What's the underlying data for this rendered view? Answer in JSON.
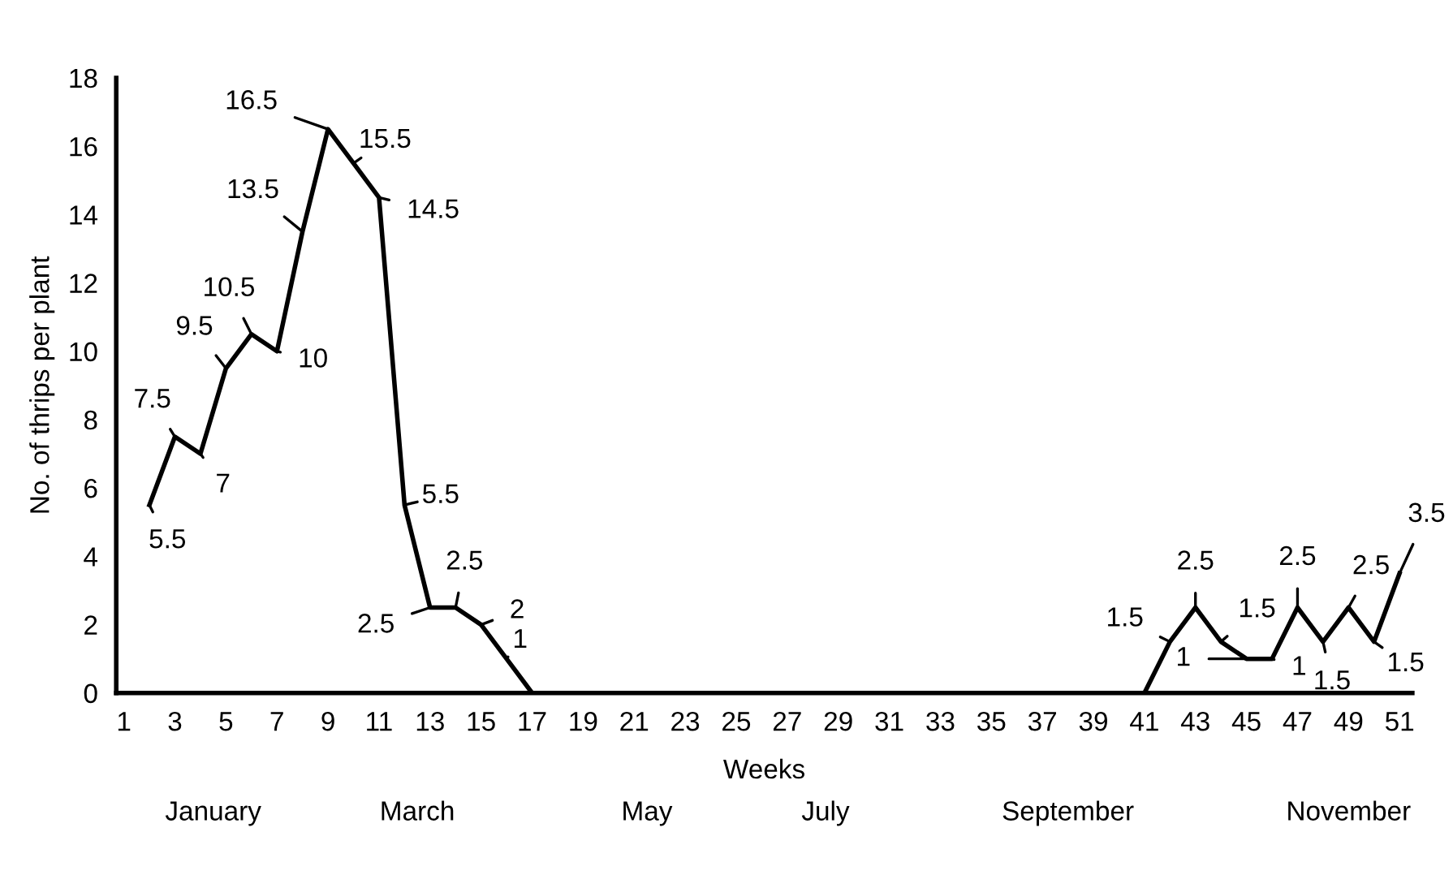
{
  "chart_data": {
    "type": "line",
    "xlabel": "Weeks",
    "ylabel": "No. of thrips per plant",
    "x": [
      2,
      3,
      4,
      5,
      6,
      7,
      8,
      9,
      10,
      11,
      12,
      13,
      14,
      15,
      16,
      17,
      41,
      42,
      43,
      44,
      45,
      46,
      47,
      48,
      49,
      50,
      51
    ],
    "series": [
      {
        "color": "#000000",
        "values": [
          5.5,
          7.5,
          7,
          9.5,
          10.5,
          10,
          13.5,
          16.5,
          15.5,
          14.5,
          5.5,
          2.5,
          2.5,
          2,
          1,
          0,
          0,
          1.5,
          2.5,
          1.5,
          1,
          1,
          2.5,
          1.5,
          2.5,
          1.5,
          3.5
        ],
        "value_labels": [
          "5.5",
          "7.5",
          "7",
          "9.5",
          "10.5",
          "10",
          "13.5",
          "16.5",
          "15.5",
          "14.5",
          "5.5",
          "2.5",
          "2.5",
          "2",
          "1",
          null,
          null,
          "1.5",
          "2.5",
          "1.5",
          "1",
          "1",
          "2.5",
          "1.5",
          "2.5",
          "1.5",
          "3.5"
        ]
      }
    ],
    "xlim": [
      0.7,
      51.5
    ],
    "ylim": [
      0,
      18
    ],
    "xticks": [
      1,
      3,
      5,
      7,
      9,
      11,
      13,
      15,
      17,
      19,
      21,
      23,
      25,
      27,
      29,
      31,
      33,
      35,
      37,
      39,
      41,
      43,
      45,
      47,
      49,
      51
    ],
    "yticks": [
      0,
      2,
      4,
      6,
      8,
      10,
      12,
      14,
      16,
      18
    ],
    "annotations": [
      "January",
      "March",
      "May",
      "July",
      "September",
      "November"
    ],
    "grid": false,
    "legend": false,
    "marker": "none",
    "line_style": "solid"
  }
}
